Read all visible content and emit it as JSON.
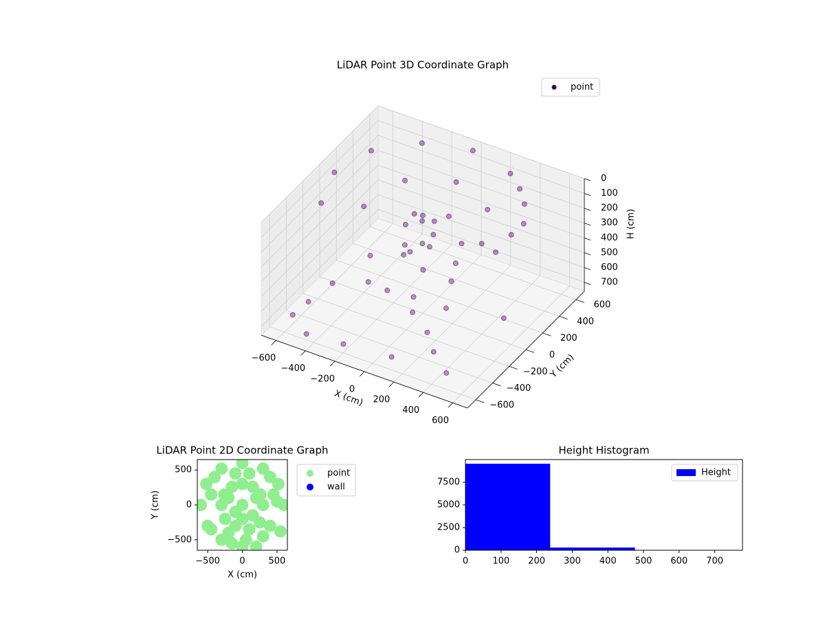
{
  "chart_data": [
    {
      "type": "scatter3d",
      "title": "LiDAR Point 3D Coordinate Graph",
      "xlabel": "X (cm)",
      "ylabel": "Y (cm)",
      "zlabel": "H (cm)",
      "xlim": [
        -700,
        700
      ],
      "ylim": [
        -700,
        700
      ],
      "zlim": [
        0,
        760
      ],
      "z_inverted": true,
      "xticks": [
        {
          "value": -600,
          "label": "−600"
        },
        {
          "value": -400,
          "label": "−400"
        },
        {
          "value": -200,
          "label": "−200"
        },
        0,
        200,
        400,
        600
      ],
      "yticks": [
        {
          "value": -600,
          "label": "−600"
        },
        {
          "value": -400,
          "label": "−400"
        },
        {
          "value": -200,
          "label": "−200"
        },
        0,
        200,
        400,
        600
      ],
      "zticks": [
        0,
        100,
        200,
        300,
        400,
        500,
        600,
        700
      ],
      "grid": true,
      "legend": "upper right",
      "series": [
        {
          "name": "point",
          "color": "#440154",
          "x": [
            600,
            520,
            300,
            0,
            -300,
            -520,
            -600,
            -520,
            450,
            580,
            600,
            420,
            400,
            280,
            0,
            -280,
            -400,
            200,
            0,
            50,
            -50,
            80,
            -100,
            120,
            -30,
            60,
            -80,
            20,
            -200,
            -100,
            100,
            50,
            -300,
            250,
            300,
            -150,
            150,
            -600,
            -450,
            -200,
            100,
            300,
            500,
            -550,
            -300,
            200,
            550,
            -500
          ],
          "y": [
            0,
            300,
            520,
            600,
            520,
            300,
            0,
            -300,
            -400,
            -150,
            150,
            420,
            0,
            280,
            400,
            280,
            0,
            -350,
            0,
            50,
            80,
            -60,
            -30,
            100,
            -100,
            20,
            40,
            -40,
            -300,
            -250,
            -300,
            -200,
            -100,
            -100,
            -250,
            50,
            200,
            -500,
            -600,
            -600,
            -550,
            -400,
            -600,
            -400,
            300,
            -300,
            0,
            -200
          ],
          "z": [
            20,
            10,
            5,
            0,
            10,
            15,
            20,
            30,
            40,
            60,
            30,
            10,
            150,
            120,
            100,
            120,
            180,
            200,
            100,
            150,
            200,
            250,
            180,
            120,
            300,
            220,
            140,
            260,
            450,
            500,
            550,
            520,
            420,
            400,
            480,
            380,
            350,
            700,
            720,
            700,
            710,
            690,
            650,
            650,
            640,
            650,
            600,
            620
          ]
        }
      ]
    },
    {
      "type": "scatter",
      "title": "LiDAR Point 2D Coordinate Graph",
      "xlabel": "X (cm)",
      "ylabel": "Y (cm)",
      "xlim": [
        -650,
        650
      ],
      "ylim": [
        -650,
        650
      ],
      "xticks": [
        {
          "value": -500,
          "label": "−500"
        },
        0,
        500
      ],
      "yticks": [
        {
          "value": -500,
          "label": "−500"
        },
        0,
        500
      ],
      "legend": "outside right",
      "series": [
        {
          "name": "point",
          "color": "#90ee90",
          "x": [
            600,
            520,
            300,
            0,
            -300,
            -520,
            -600,
            300,
            260,
            150,
            0,
            -150,
            -260,
            -300,
            0,
            400,
            -400,
            100,
            -100,
            450,
            -450,
            200,
            -200,
            -500,
            -450,
            -250,
            -200,
            -100,
            0,
            50,
            0,
            100,
            200,
            250,
            300,
            400,
            550,
            -300,
            -150,
            150,
            -100,
            500
          ],
          "y": [
            0,
            300,
            520,
            600,
            520,
            300,
            0,
            0,
            150,
            260,
            300,
            260,
            150,
            0,
            0,
            400,
            400,
            450,
            450,
            150,
            150,
            100,
            100,
            -300,
            -350,
            -200,
            -400,
            -300,
            -200,
            -500,
            -600,
            -350,
            -600,
            -250,
            -450,
            -300,
            -380,
            -500,
            -550,
            -150,
            -100,
            50
          ]
        },
        {
          "name": "wall",
          "color": "#0000ff",
          "x": [],
          "y": []
        }
      ]
    },
    {
      "type": "histogram",
      "title": "Height Histogram",
      "xlim": [
        0,
        778
      ],
      "ylim": [
        0,
        10000
      ],
      "xticks": [
        0,
        100,
        200,
        300,
        400,
        500,
        600,
        700
      ],
      "yticks": [
        0,
        2500,
        5000,
        7500
      ],
      "legend": "upper right",
      "series": [
        {
          "name": "Height",
          "color": "#0000ff",
          "bins": [
            0,
            238,
            476,
            714
          ],
          "counts": [
            9540,
            300,
            15
          ]
        }
      ]
    }
  ]
}
